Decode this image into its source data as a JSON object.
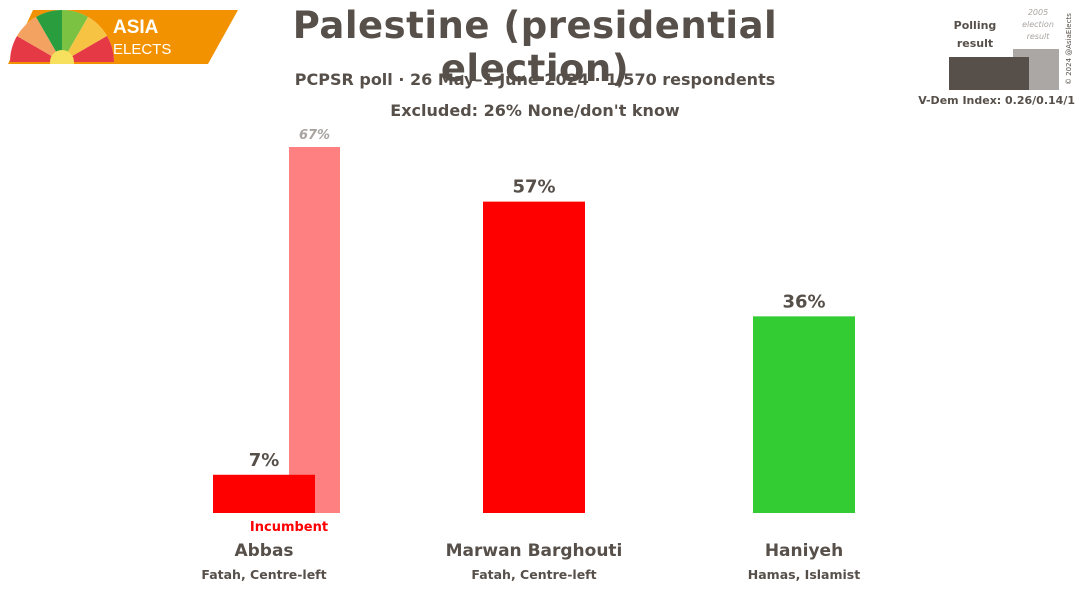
{
  "branding": {
    "logo_line1": "ASIA",
    "logo_line2": "ELECTS",
    "copyright": "© 2024 @AsiaElects"
  },
  "header": {
    "title": "Palestine (presidential election)",
    "subtitle": "PCPSR poll · 26 May–1 June 2024 · 1,570 respondents",
    "excluded": "Excluded: 26% None/don't know"
  },
  "legend": {
    "polling_label_line1": "Polling",
    "polling_label_line2": "result",
    "previous_label_line1": "2005",
    "previous_label_line2": "election",
    "previous_label_line3": "result",
    "vdem": "V-Dem Index: 0.26/0.14/1"
  },
  "colors": {
    "fatah": "#ff0000",
    "fatah_previous": "#ff8080",
    "hamas": "#33cc33",
    "text": "#57504a",
    "previous_label": "#a9a4a0",
    "legend_poll": "#57504a",
    "legend_prev": "#aaa7a5",
    "logo_orange": "#f39200"
  },
  "chart_data": {
    "type": "bar",
    "title": "Palestine (presidential election)",
    "ylim": [
      0,
      70
    ],
    "categories": [
      "Abbas",
      "Marwan Barghouti",
      "Haniyeh"
    ],
    "parties": [
      "Fatah, Centre-left",
      "Fatah, Centre-left",
      "Hamas, Islamist"
    ],
    "series": [
      {
        "name": "Polling result",
        "values": [
          7,
          57,
          36
        ],
        "labels": [
          "7%",
          "57%",
          "36%"
        ]
      },
      {
        "name": "2005 election result",
        "values": [
          67,
          null,
          null
        ],
        "labels": [
          "67%",
          "",
          ""
        ]
      }
    ],
    "annotations": [
      {
        "category": "Abbas",
        "text": "Incumbent"
      }
    ]
  }
}
